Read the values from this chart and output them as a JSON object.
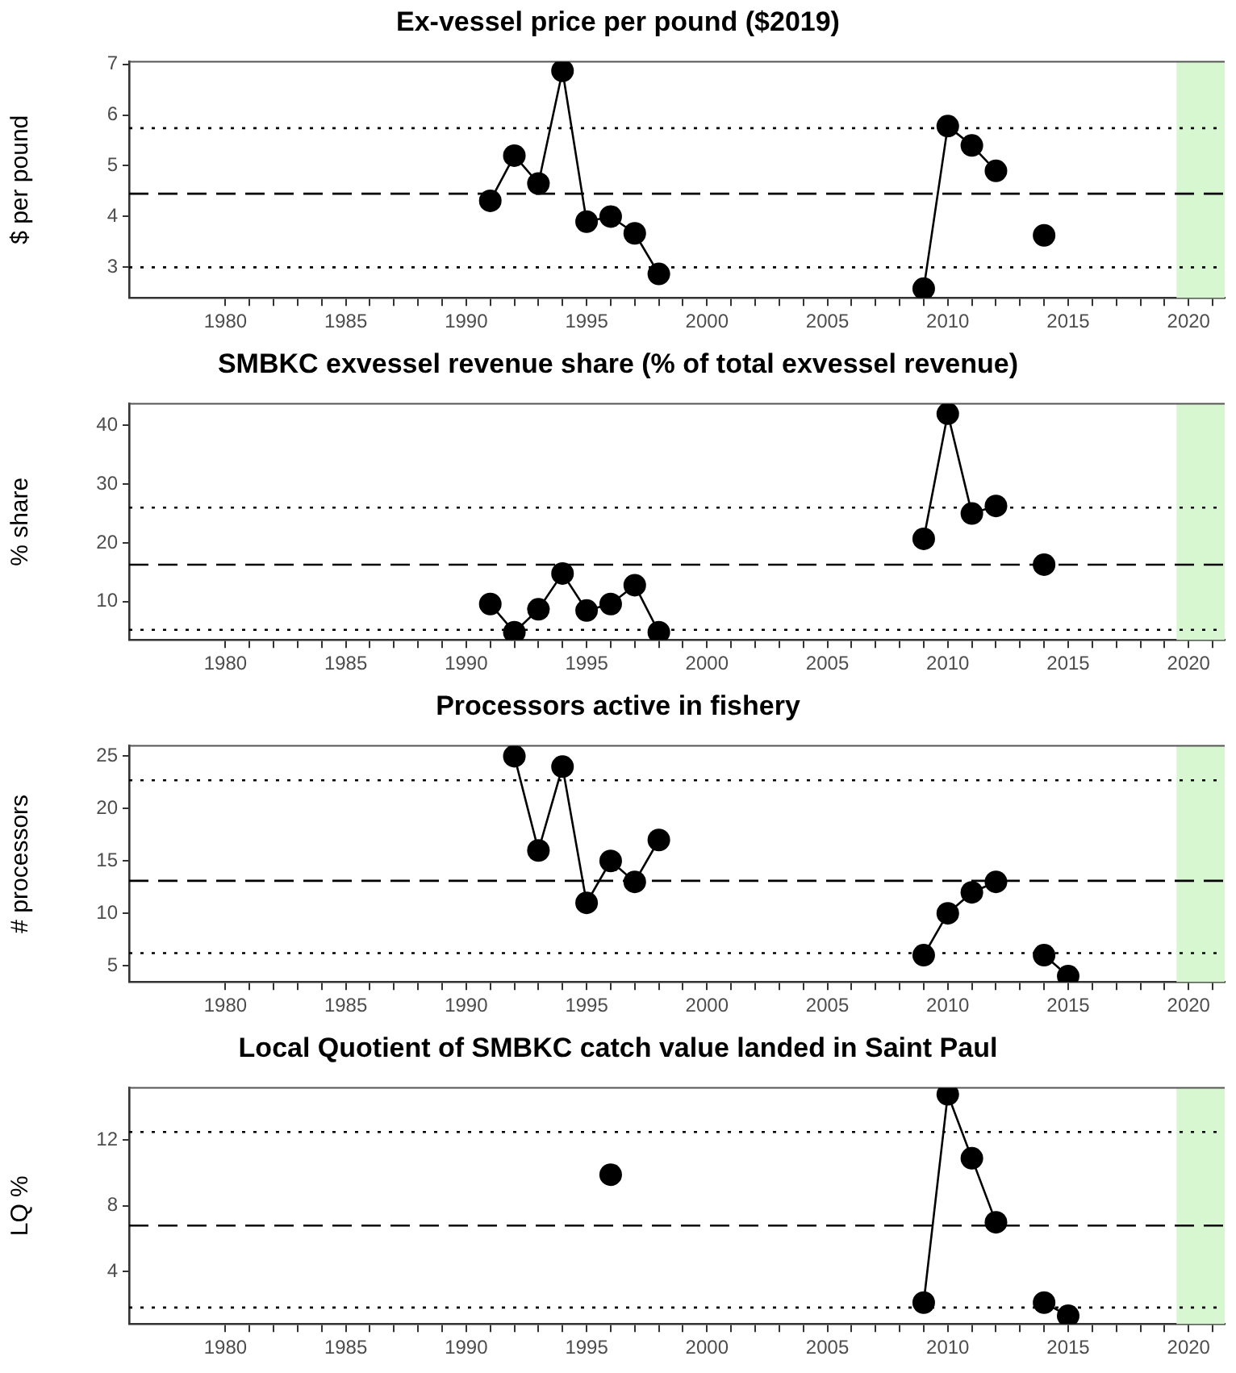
{
  "chart_data": [
    {
      "type": "line",
      "title": "Ex-vessel price per pound ($2019)",
      "ylabel": "$ per pound",
      "marker": "circle",
      "line_style": "solid",
      "grid": false,
      "legend": false,
      "x": [
        1991,
        1992,
        1993,
        1994,
        1995,
        1996,
        1997,
        1998,
        1999,
        2009,
        2010,
        2011,
        2012,
        2013,
        2014
      ],
      "series": [
        {
          "color": "#000000",
          "values": [
            4.31,
            5.2,
            4.65,
            6.87,
            3.9,
            4.0,
            3.67,
            2.87,
            null,
            2.58,
            5.78,
            5.4,
            4.9,
            null,
            3.63
          ]
        }
      ],
      "xlim": [
        1976,
        2021.5
      ],
      "xticks": [
        {
          "value": 1980,
          "label": "1980"
        },
        {
          "value": 1981,
          "label": null
        },
        {
          "value": 1982,
          "label": null
        },
        {
          "value": 1983,
          "label": null
        },
        {
          "value": 1984,
          "label": null
        },
        {
          "value": 1985,
          "label": "1985"
        },
        {
          "value": 1986,
          "label": null
        },
        {
          "value": 1987,
          "label": null
        },
        {
          "value": 1988,
          "label": null
        },
        {
          "value": 1989,
          "label": null
        },
        {
          "value": 1990,
          "label": "1990"
        },
        {
          "value": 1991,
          "label": null
        },
        {
          "value": 1992,
          "label": null
        },
        {
          "value": 1993,
          "label": null
        },
        {
          "value": 1994,
          "label": null
        },
        {
          "value": 1995,
          "label": "1995"
        },
        {
          "value": 1996,
          "label": null
        },
        {
          "value": 1997,
          "label": null
        },
        {
          "value": 1998,
          "label": null
        },
        {
          "value": 1999,
          "label": null
        },
        {
          "value": 2000,
          "label": "2000"
        },
        {
          "value": 2001,
          "label": null
        },
        {
          "value": 2002,
          "label": null
        },
        {
          "value": 2003,
          "label": null
        },
        {
          "value": 2004,
          "label": null
        },
        {
          "value": 2005,
          "label": "2005"
        },
        {
          "value": 2006,
          "label": null
        },
        {
          "value": 2007,
          "label": null
        },
        {
          "value": 2008,
          "label": null
        },
        {
          "value": 2009,
          "label": null
        },
        {
          "value": 2010,
          "label": "2010"
        },
        {
          "value": 2011,
          "label": null
        },
        {
          "value": 2012,
          "label": null
        },
        {
          "value": 2013,
          "label": null
        },
        {
          "value": 2014,
          "label": null
        },
        {
          "value": 2015,
          "label": "2015"
        },
        {
          "value": 2016,
          "label": null
        },
        {
          "value": 2017,
          "label": null
        },
        {
          "value": 2018,
          "label": null
        },
        {
          "value": 2019,
          "label": null
        },
        {
          "value": 2020,
          "label": "2020"
        },
        {
          "value": 2021,
          "label": null
        }
      ],
      "ylim": [
        2.4,
        7.05
      ],
      "yticks": [
        3,
        4,
        5,
        6,
        7
      ],
      "ref_lines": [
        {
          "axis": "y",
          "value": 4.45,
          "line_style": "dashed",
          "color": "#000000"
        },
        {
          "axis": "y",
          "value": 5.74,
          "line_style": "dotted",
          "color": "#000000"
        },
        {
          "axis": "y",
          "value": 3.0,
          "line_style": "dotted",
          "color": "#000000"
        }
      ],
      "bands": [
        {
          "axis": "x",
          "from": 2019.5,
          "to": 2021.5,
          "color": "#d6f7d0"
        }
      ]
    },
    {
      "type": "line",
      "title": "SMBKC exvessel revenue share (% of total exvessel revenue)",
      "ylabel": "% share",
      "marker": "circle",
      "line_style": "solid",
      "grid": false,
      "legend": false,
      "x": [
        1991,
        1992,
        1993,
        1994,
        1995,
        1996,
        1997,
        1998,
        1999,
        2009,
        2010,
        2011,
        2012,
        2013,
        2014
      ],
      "series": [
        {
          "color": "#000000",
          "values": [
            9.6,
            4.8,
            8.7,
            14.8,
            8.5,
            9.6,
            12.8,
            4.8,
            null,
            20.7,
            42,
            25,
            26.3,
            null,
            16.3
          ]
        }
      ],
      "xlim": [
        1976,
        2021.5
      ],
      "xticks": [
        {
          "value": 1980,
          "label": "1980"
        },
        {
          "value": 1981,
          "label": null
        },
        {
          "value": 1982,
          "label": null
        },
        {
          "value": 1983,
          "label": null
        },
        {
          "value": 1984,
          "label": null
        },
        {
          "value": 1985,
          "label": "1985"
        },
        {
          "value": 1986,
          "label": null
        },
        {
          "value": 1987,
          "label": null
        },
        {
          "value": 1988,
          "label": null
        },
        {
          "value": 1989,
          "label": null
        },
        {
          "value": 1990,
          "label": "1990"
        },
        {
          "value": 1991,
          "label": null
        },
        {
          "value": 1992,
          "label": null
        },
        {
          "value": 1993,
          "label": null
        },
        {
          "value": 1994,
          "label": null
        },
        {
          "value": 1995,
          "label": "1995"
        },
        {
          "value": 1996,
          "label": null
        },
        {
          "value": 1997,
          "label": null
        },
        {
          "value": 1998,
          "label": null
        },
        {
          "value": 1999,
          "label": null
        },
        {
          "value": 2000,
          "label": "2000"
        },
        {
          "value": 2001,
          "label": null
        },
        {
          "value": 2002,
          "label": null
        },
        {
          "value": 2003,
          "label": null
        },
        {
          "value": 2004,
          "label": null
        },
        {
          "value": 2005,
          "label": "2005"
        },
        {
          "value": 2006,
          "label": null
        },
        {
          "value": 2007,
          "label": null
        },
        {
          "value": 2008,
          "label": null
        },
        {
          "value": 2009,
          "label": null
        },
        {
          "value": 2010,
          "label": "2010"
        },
        {
          "value": 2011,
          "label": null
        },
        {
          "value": 2012,
          "label": null
        },
        {
          "value": 2013,
          "label": null
        },
        {
          "value": 2014,
          "label": null
        },
        {
          "value": 2015,
          "label": "2015"
        },
        {
          "value": 2016,
          "label": null
        },
        {
          "value": 2017,
          "label": null
        },
        {
          "value": 2018,
          "label": null
        },
        {
          "value": 2019,
          "label": null
        },
        {
          "value": 2020,
          "label": "2020"
        },
        {
          "value": 2021,
          "label": null
        }
      ],
      "ylim": [
        3.5,
        43.7
      ],
      "yticks": [
        10,
        20,
        30,
        40
      ],
      "ref_lines": [
        {
          "axis": "y",
          "value": 16.3,
          "line_style": "dashed",
          "color": "#000000"
        },
        {
          "axis": "y",
          "value": 26,
          "line_style": "dotted",
          "color": "#000000"
        },
        {
          "axis": "y",
          "value": 5.2,
          "line_style": "dotted",
          "color": "#000000"
        }
      ],
      "bands": [
        {
          "axis": "x",
          "from": 2019.5,
          "to": 2021.5,
          "color": "#d6f7d0"
        }
      ]
    },
    {
      "type": "line",
      "title": "Processors active in fishery",
      "ylabel": "# processors",
      "marker": "circle",
      "line_style": "solid",
      "grid": false,
      "legend": false,
      "x": [
        1992,
        1993,
        1994,
        1995,
        1996,
        1997,
        1998,
        1999,
        2009,
        2010,
        2011,
        2012,
        2013,
        2014,
        2015
      ],
      "series": [
        {
          "color": "#000000",
          "values": [
            25,
            16,
            24,
            11,
            15,
            13,
            17,
            null,
            6,
            10,
            12,
            13,
            null,
            6,
            4
          ]
        }
      ],
      "xlim": [
        1976,
        2021.5
      ],
      "xticks": [
        {
          "value": 1980,
          "label": "1980"
        },
        {
          "value": 1981,
          "label": null
        },
        {
          "value": 1982,
          "label": null
        },
        {
          "value": 1983,
          "label": null
        },
        {
          "value": 1984,
          "label": null
        },
        {
          "value": 1985,
          "label": "1985"
        },
        {
          "value": 1986,
          "label": null
        },
        {
          "value": 1987,
          "label": null
        },
        {
          "value": 1988,
          "label": null
        },
        {
          "value": 1989,
          "label": null
        },
        {
          "value": 1990,
          "label": "1990"
        },
        {
          "value": 1991,
          "label": null
        },
        {
          "value": 1992,
          "label": null
        },
        {
          "value": 1993,
          "label": null
        },
        {
          "value": 1994,
          "label": null
        },
        {
          "value": 1995,
          "label": "1995"
        },
        {
          "value": 1996,
          "label": null
        },
        {
          "value": 1997,
          "label": null
        },
        {
          "value": 1998,
          "label": null
        },
        {
          "value": 1999,
          "label": null
        },
        {
          "value": 2000,
          "label": "2000"
        },
        {
          "value": 2001,
          "label": null
        },
        {
          "value": 2002,
          "label": null
        },
        {
          "value": 2003,
          "label": null
        },
        {
          "value": 2004,
          "label": null
        },
        {
          "value": 2005,
          "label": "2005"
        },
        {
          "value": 2006,
          "label": null
        },
        {
          "value": 2007,
          "label": null
        },
        {
          "value": 2008,
          "label": null
        },
        {
          "value": 2009,
          "label": null
        },
        {
          "value": 2010,
          "label": "2010"
        },
        {
          "value": 2011,
          "label": null
        },
        {
          "value": 2012,
          "label": null
        },
        {
          "value": 2013,
          "label": null
        },
        {
          "value": 2014,
          "label": null
        },
        {
          "value": 2015,
          "label": "2015"
        },
        {
          "value": 2016,
          "label": null
        },
        {
          "value": 2017,
          "label": null
        },
        {
          "value": 2018,
          "label": null
        },
        {
          "value": 2019,
          "label": null
        },
        {
          "value": 2020,
          "label": "2020"
        },
        {
          "value": 2021,
          "label": null
        }
      ],
      "ylim": [
        3.45,
        26
      ],
      "yticks": [
        5,
        10,
        15,
        20,
        25
      ],
      "ref_lines": [
        {
          "axis": "y",
          "value": 13.1,
          "line_style": "dashed",
          "color": "#000000"
        },
        {
          "axis": "y",
          "value": 22.7,
          "line_style": "dotted",
          "color": "#000000"
        },
        {
          "axis": "y",
          "value": 6.2,
          "line_style": "dotted",
          "color": "#000000"
        }
      ],
      "bands": [
        {
          "axis": "x",
          "from": 2019.5,
          "to": 2021.5,
          "color": "#d6f7d0"
        }
      ]
    },
    {
      "type": "line",
      "title": "Local Quotient of SMBKC catch value landed in Saint Paul",
      "ylabel": "LQ %",
      "marker": "circle",
      "line_style": "solid",
      "grid": false,
      "legend": false,
      "x": [
        1996,
        1997,
        2009,
        2010,
        2011,
        2012,
        2013,
        2014,
        2015
      ],
      "series": [
        {
          "color": "#000000",
          "values": [
            9.9,
            null,
            2.1,
            14.8,
            10.9,
            7,
            null,
            2.1,
            1.3
          ]
        }
      ],
      "xlim": [
        1976,
        2021.5
      ],
      "xticks": [
        {
          "value": 1980,
          "label": "1980"
        },
        {
          "value": 1981,
          "label": null
        },
        {
          "value": 1982,
          "label": null
        },
        {
          "value": 1983,
          "label": null
        },
        {
          "value": 1984,
          "label": null
        },
        {
          "value": 1985,
          "label": "1985"
        },
        {
          "value": 1986,
          "label": null
        },
        {
          "value": 1987,
          "label": null
        },
        {
          "value": 1988,
          "label": null
        },
        {
          "value": 1989,
          "label": null
        },
        {
          "value": 1990,
          "label": "1990"
        },
        {
          "value": 1991,
          "label": null
        },
        {
          "value": 1992,
          "label": null
        },
        {
          "value": 1993,
          "label": null
        },
        {
          "value": 1994,
          "label": null
        },
        {
          "value": 1995,
          "label": "1995"
        },
        {
          "value": 1996,
          "label": null
        },
        {
          "value": 1997,
          "label": null
        },
        {
          "value": 1998,
          "label": null
        },
        {
          "value": 1999,
          "label": null
        },
        {
          "value": 2000,
          "label": "2000"
        },
        {
          "value": 2001,
          "label": null
        },
        {
          "value": 2002,
          "label": null
        },
        {
          "value": 2003,
          "label": null
        },
        {
          "value": 2004,
          "label": null
        },
        {
          "value": 2005,
          "label": "2005"
        },
        {
          "value": 2006,
          "label": null
        },
        {
          "value": 2007,
          "label": null
        },
        {
          "value": 2008,
          "label": null
        },
        {
          "value": 2009,
          "label": null
        },
        {
          "value": 2010,
          "label": "2010"
        },
        {
          "value": 2011,
          "label": null
        },
        {
          "value": 2012,
          "label": null
        },
        {
          "value": 2013,
          "label": null
        },
        {
          "value": 2014,
          "label": null
        },
        {
          "value": 2015,
          "label": "2015"
        },
        {
          "value": 2016,
          "label": null
        },
        {
          "value": 2017,
          "label": null
        },
        {
          "value": 2018,
          "label": null
        },
        {
          "value": 2019,
          "label": null
        },
        {
          "value": 2020,
          "label": "2020"
        },
        {
          "value": 2021,
          "label": null
        }
      ],
      "ylim": [
        0.8,
        15.2
      ],
      "yticks": [
        4,
        8,
        12
      ],
      "ref_lines": [
        {
          "axis": "y",
          "value": 6.8,
          "line_style": "dashed",
          "color": "#000000"
        },
        {
          "axis": "y",
          "value": 12.5,
          "line_style": "dotted",
          "color": "#000000"
        },
        {
          "axis": "y",
          "value": 1.8,
          "line_style": "dotted",
          "color": "#000000"
        }
      ],
      "bands": [
        {
          "axis": "x",
          "from": 2019.5,
          "to": 2021.5,
          "color": "#d6f7d0"
        }
      ]
    }
  ]
}
